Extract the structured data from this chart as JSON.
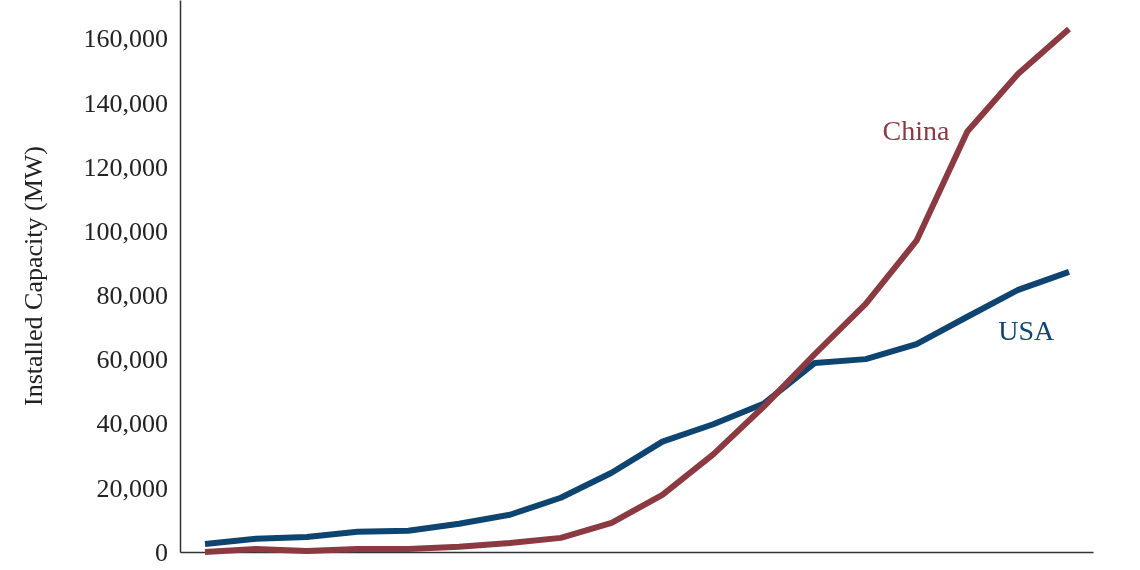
{
  "chart_data": {
    "type": "line",
    "ylabel": "Installed Capacity (MW)",
    "categories": [
      null,
      null,
      null,
      null,
      null,
      null,
      null,
      null,
      null,
      null,
      null,
      null,
      null,
      null,
      null,
      null,
      null,
      null
    ],
    "series": [
      {
        "name": "USA",
        "color": "#0e4470",
        "values": [
          2500,
          4100,
          4700,
          6300,
          6600,
          8800,
          11600,
          16900,
          24700,
          34400,
          39800,
          46300,
          58900,
          60100,
          64800,
          73300,
          81700,
          87300
        ]
      },
      {
        "name": "China",
        "color": "#8b3a42",
        "values": [
          0,
          900,
          300,
          900,
          900,
          1600,
          2800,
          4400,
          9100,
          17800,
          30400,
          45400,
          61700,
          77300,
          97000,
          131000,
          149000,
          163000
        ]
      }
    ],
    "ylim": [
      0,
      172000
    ],
    "yticks": [
      {
        "value": 0,
        "label": "0"
      },
      {
        "value": 20000,
        "label": "20,000"
      },
      {
        "value": 40000,
        "label": "40,000"
      },
      {
        "value": 60000,
        "label": "60,000"
      },
      {
        "value": 80000,
        "label": "80,000"
      },
      {
        "value": 100000,
        "label": "100,000"
      },
      {
        "value": 120000,
        "label": "120,000"
      },
      {
        "value": 140000,
        "label": "140,000"
      },
      {
        "value": 160000,
        "label": "160,000"
      }
    ],
    "grid": false,
    "legend": false,
    "marker": "none",
    "line_style": "solid"
  }
}
